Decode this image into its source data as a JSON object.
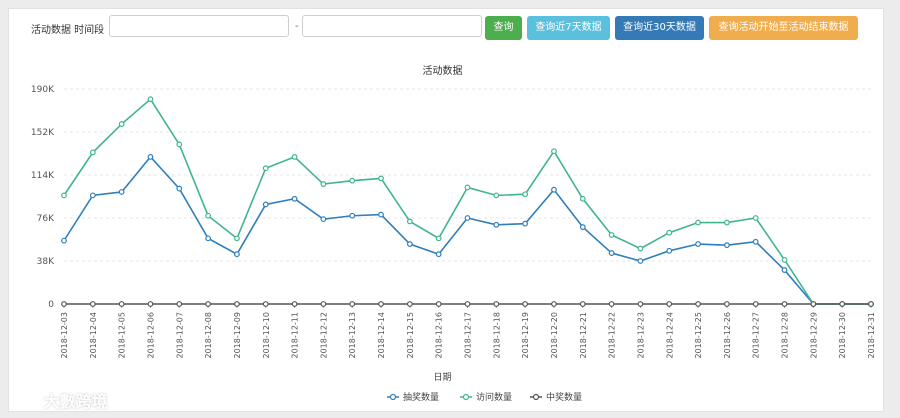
{
  "toolbar": {
    "label": "活动数据 时间段",
    "start_value": "",
    "end_value": "",
    "separator": "-",
    "buttons": [
      {
        "label": "查询",
        "color": "#4cae4c"
      },
      {
        "label": "查询近7天数据",
        "color": "#5bc0de"
      },
      {
        "label": "查询近30天数据",
        "color": "#337ab7"
      },
      {
        "label": "查询活动开始至活动结束数据",
        "color": "#f0ad4e"
      }
    ]
  },
  "watermark": "大數跨境",
  "chart_data": {
    "type": "line",
    "title": "活动数据",
    "xlabel": "日期",
    "ylabel": "",
    "ylim": [
      0,
      190000
    ],
    "yticks": [
      0,
      38000,
      76000,
      114000,
      152000,
      190000
    ],
    "ytick_labels": [
      "0",
      "38K",
      "76K",
      "114K",
      "152K",
      "190K"
    ],
    "grid": true,
    "legend_position": "bottom-center",
    "categories": [
      "2018-12-03",
      "2018-12-04",
      "2018-12-05",
      "2018-12-06",
      "2018-12-07",
      "2018-12-08",
      "2018-12-09",
      "2018-12-10",
      "2018-12-11",
      "2018-12-12",
      "2018-12-13",
      "2018-12-14",
      "2018-12-15",
      "2018-12-16",
      "2018-12-17",
      "2018-12-18",
      "2018-12-19",
      "2018-12-20",
      "2018-12-21",
      "2018-12-22",
      "2018-12-23",
      "2018-12-24",
      "2018-12-25",
      "2018-12-26",
      "2018-12-27",
      "2018-12-28",
      "2018-12-29",
      "2018-12-30",
      "2018-12-31"
    ],
    "series": [
      {
        "name": "抽奖数量",
        "color": "#2f7ebd",
        "values": [
          56000,
          96000,
          99000,
          130000,
          102000,
          58000,
          44000,
          88000,
          93000,
          75000,
          78000,
          79000,
          53000,
          44000,
          76000,
          70000,
          71000,
          101000,
          68000,
          45000,
          38000,
          47000,
          53000,
          52000,
          55000,
          30000,
          0,
          0,
          0
        ]
      },
      {
        "name": "访问数量",
        "color": "#3fb58f",
        "values": [
          96000,
          134000,
          159000,
          181000,
          141000,
          78000,
          58000,
          120000,
          130000,
          106000,
          109000,
          111000,
          73000,
          58000,
          103000,
          96000,
          97000,
          135000,
          93000,
          61000,
          49000,
          63000,
          72000,
          72000,
          76000,
          39000,
          0,
          0,
          0
        ]
      },
      {
        "name": "中奖数量",
        "color": "#555555",
        "values": [
          0,
          0,
          0,
          0,
          0,
          0,
          0,
          0,
          0,
          0,
          0,
          0,
          0,
          0,
          0,
          0,
          0,
          0,
          0,
          0,
          0,
          0,
          0,
          0,
          0,
          0,
          0,
          0,
          0
        ]
      }
    ]
  }
}
